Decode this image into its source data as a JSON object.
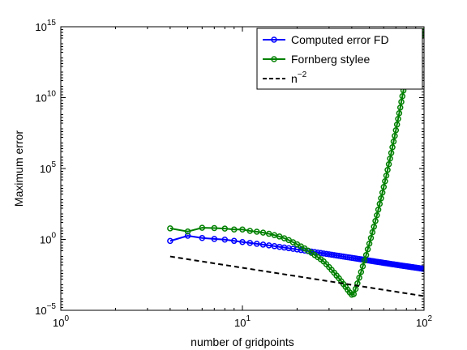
{
  "chart_data": {
    "type": "line",
    "xscale": "log",
    "yscale": "log",
    "xlim": [
      1,
      100
    ],
    "ylim": [
      1e-05,
      1000000000000000
    ],
    "xlabel": "number of gridpoints",
    "ylabel": "Maximum error",
    "x_ticks": [
      {
        "value": 1,
        "base": "10",
        "exp": "0"
      },
      {
        "value": 10,
        "base": "10",
        "exp": "1"
      },
      {
        "value": 100,
        "base": "10",
        "exp": "2"
      }
    ],
    "y_ticks": [
      {
        "value": 1e-05,
        "base": "10",
        "exp": "−5"
      },
      {
        "value": 1,
        "base": "10",
        "exp": "0"
      },
      {
        "value": 100000,
        "base": "10",
        "exp": "5"
      },
      {
        "value": 10000000000,
        "base": "10",
        "exp": "10"
      },
      {
        "value": 1000000000000000,
        "base": "10",
        "exp": "15"
      }
    ],
    "legend_position": "top-right",
    "grid": false,
    "series": [
      {
        "name": "Computed error FD",
        "color": "#0000ff",
        "style": "solid",
        "marker": "circle",
        "x": [
          4,
          5,
          6,
          7,
          8,
          9,
          10,
          11,
          12,
          13,
          14,
          15,
          16,
          17,
          18,
          19,
          20,
          21,
          22,
          23,
          24,
          25,
          26,
          27,
          28,
          29,
          30,
          31,
          32,
          33,
          34,
          35,
          36,
          37,
          38,
          39,
          40,
          41,
          42,
          43,
          44,
          45,
          46,
          47,
          48,
          49,
          50,
          51,
          52,
          53,
          54,
          55,
          56,
          57,
          58,
          59,
          60,
          61,
          62,
          63,
          64,
          65,
          66,
          67,
          68,
          69,
          70,
          71,
          72,
          73,
          74,
          75,
          76,
          77,
          78,
          79,
          80,
          81,
          82,
          83,
          84,
          85,
          86,
          87,
          88,
          89,
          90,
          91,
          92,
          93,
          94,
          95,
          96,
          97,
          98,
          99,
          100
        ],
        "y": [
          0.78,
          1.8,
          1.26,
          1.08,
          0.97,
          0.79,
          0.655,
          0.566,
          0.49,
          0.43,
          0.378,
          0.335,
          0.298,
          0.267,
          0.24,
          0.217,
          0.197,
          0.179,
          0.164,
          0.15,
          0.138,
          0.128,
          0.118,
          0.11,
          0.102,
          0.0952,
          0.0889,
          0.0833,
          0.0781,
          0.0734,
          0.0692,
          0.0653,
          0.0617,
          0.0584,
          0.0554,
          0.0526,
          0.05,
          0.0476,
          0.0454,
          0.0433,
          0.0413,
          0.0395,
          0.0378,
          0.0362,
          0.0347,
          0.0333,
          0.032,
          0.0307,
          0.0296,
          0.0285,
          0.0274,
          0.0264,
          0.0255,
          0.0246,
          0.0238,
          0.023,
          0.0222,
          0.0215,
          0.0208,
          0.0202,
          0.0195,
          0.019,
          0.0184,
          0.0179,
          0.0174,
          0.0169,
          0.0164,
          0.016,
          0.0155,
          0.0151,
          0.0147,
          0.0144,
          0.014,
          0.0137,
          0.0133,
          0.013,
          0.0127,
          0.0124,
          0.0121,
          0.0119,
          0.0116,
          0.0113,
          0.0111,
          0.0109,
          0.0106,
          0.0104,
          0.0102,
          0.01,
          0.0098,
          0.0096,
          0.0094,
          0.0092,
          0.009,
          0.0088,
          0.0087,
          0.0085,
          0.0083
        ]
      },
      {
        "name": "Fornberg stylee",
        "color": "#008000",
        "style": "solid",
        "marker": "circle",
        "x": [
          4,
          5,
          6,
          7,
          8,
          9,
          10,
          11,
          12,
          13,
          14,
          15,
          16,
          17,
          18,
          19,
          20,
          21,
          22,
          23,
          24,
          25,
          26,
          27,
          28,
          29,
          30,
          31,
          32,
          33,
          34,
          35,
          36,
          37,
          38,
          39,
          40,
          41,
          42,
          43,
          44,
          45,
          46,
          47,
          48,
          49,
          50,
          51,
          52,
          53,
          54,
          55,
          56,
          57,
          58,
          59,
          60,
          61,
          62,
          63,
          64,
          65,
          66,
          67,
          68,
          69,
          70,
          71,
          72,
          73,
          74,
          75,
          76,
          77,
          78,
          79,
          80,
          81,
          82,
          83,
          84,
          85,
          86,
          87,
          88,
          89,
          90,
          91,
          92,
          93,
          94,
          95,
          96,
          97,
          98,
          99,
          100
        ],
        "y": [
          6.0,
          3.6,
          6.6,
          6.3,
          5.8,
          5.0,
          5.0,
          4.0,
          3.5,
          3.0,
          2.5,
          2.0,
          1.6,
          1.2,
          0.89,
          0.63,
          0.45,
          0.32,
          0.23,
          0.16,
          0.112,
          0.079,
          0.056,
          0.04,
          0.028,
          0.0178,
          0.0112,
          0.0071,
          0.0045,
          0.0028,
          0.0018,
          0.0011,
          0.00071,
          0.00045,
          0.00028,
          0.00018,
          0.000126,
          0.00014,
          0.00032,
          0.00079,
          0.002,
          0.005,
          0.0126,
          0.032,
          0.079,
          0.2,
          0.5,
          1.26,
          3.2,
          7.9,
          20,
          50,
          126,
          320,
          790,
          2000,
          5000,
          12600,
          31600,
          79400,
          200000,
          500000,
          1260000,
          3160000,
          7940000,
          20000000,
          50000000,
          126000000,
          316000000,
          794000000,
          2000000000,
          5000000000,
          12600000000,
          31600000000,
          79400000000,
          200000000000,
          500000000000,
          630000000000,
          1260000000000,
          2000000000000,
          3160000000000,
          5000000000000,
          7900000000000,
          12600000000000,
          20000000000000,
          31600000000000,
          50000000000000,
          60000000000000,
          80000000000000,
          100000000000000,
          126000000000000,
          160000000000000,
          200000000000000,
          250000000000000,
          316000000000000,
          398000000000000,
          500000000000000
        ]
      },
      {
        "name": "n⁻²",
        "legend_base": "n",
        "legend_exp": "−2",
        "color": "#000000",
        "style": "dashed",
        "marker": "none",
        "x": [
          4,
          100
        ],
        "y": [
          0.0625,
          0.0001
        ]
      }
    ]
  }
}
